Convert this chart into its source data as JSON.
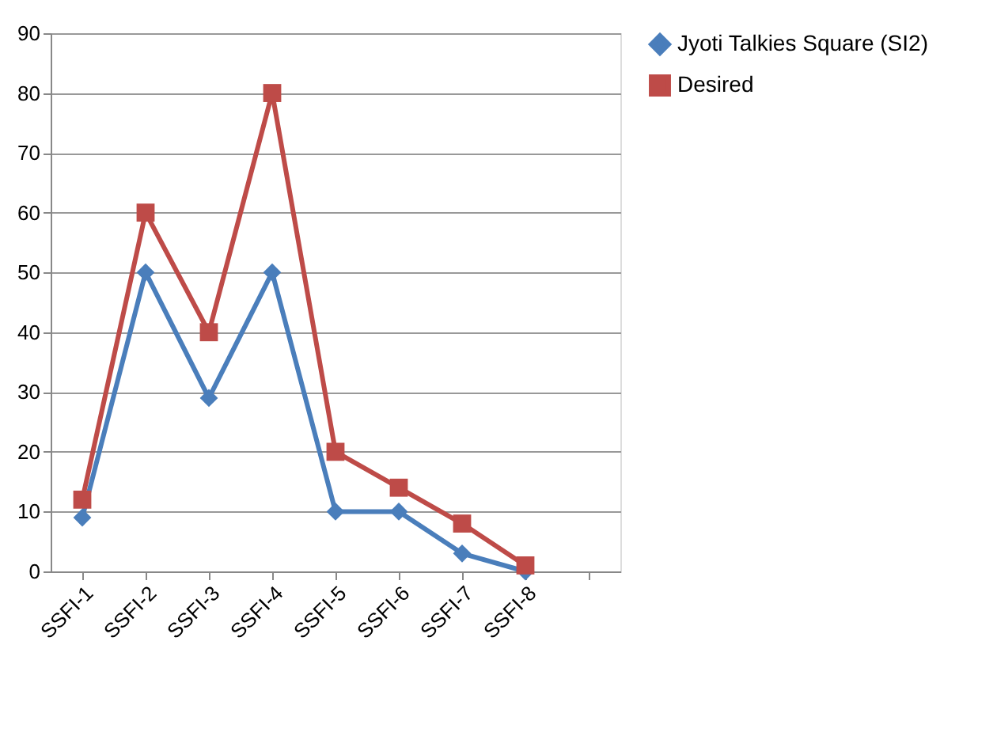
{
  "chart_data": {
    "type": "line",
    "categories": [
      "SSFI-1",
      "SSFI-2",
      "SSFI-3",
      "SSFI-4",
      "SSFI-5",
      "SSFI-6",
      "SSFI-7",
      "SSFI-8",
      null
    ],
    "series": [
      {
        "name": "Jyoti Talkies Square (SI2)",
        "color": "#4a7ebb",
        "marker": "diamond",
        "values": [
          9,
          50,
          29,
          50,
          10,
          10,
          3,
          0,
          null
        ]
      },
      {
        "name": "Desired",
        "color": "#be4b48",
        "marker": "square",
        "values": [
          12,
          60,
          40,
          80,
          20,
          14,
          8,
          1,
          null
        ]
      }
    ],
    "ylim": [
      0,
      90
    ],
    "yticks": [
      0,
      10,
      20,
      30,
      40,
      50,
      60,
      70,
      80,
      90
    ],
    "grid": "y",
    "legend": "right",
    "line_style": "solid"
  }
}
